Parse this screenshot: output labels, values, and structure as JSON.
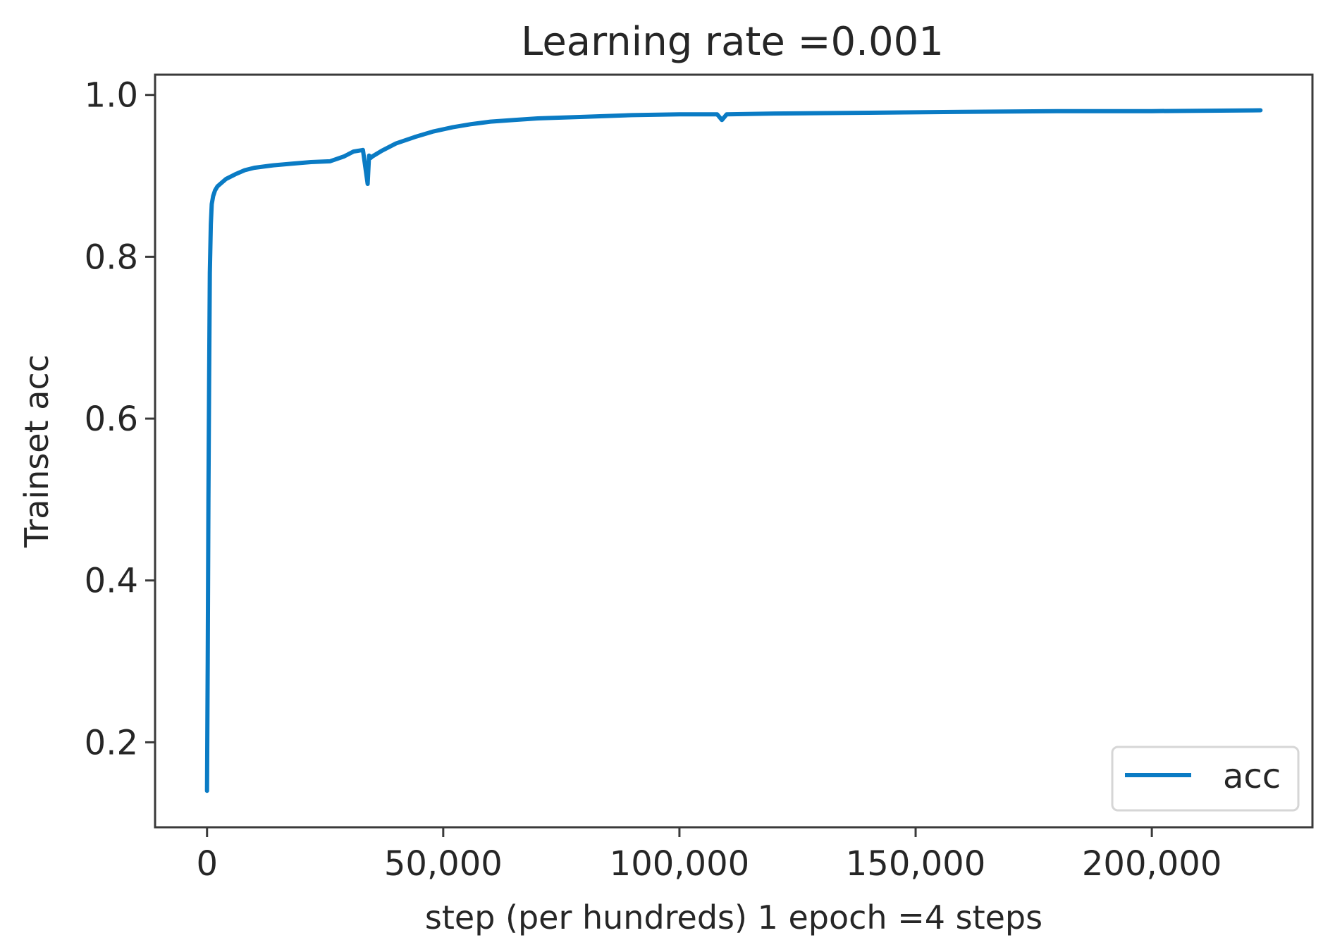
{
  "chart_data": {
    "type": "line",
    "title": "Learning rate =0.001",
    "xlabel": "step (per hundreds) 1 epoch =4 steps",
    "ylabel": "Trainset acc",
    "xlim": [
      -11000,
      234000
    ],
    "ylim": [
      0.095,
      1.025
    ],
    "xticks": [
      0,
      50000,
      100000,
      150000,
      200000
    ],
    "xtick_labels": [
      "0",
      "50,000",
      "100,000",
      "150,000",
      "200,000"
    ],
    "yticks": [
      0.2,
      0.4,
      0.6,
      0.8,
      1.0
    ],
    "ytick_labels": [
      "0.2",
      "0.4",
      "0.6",
      "0.8",
      "1.0"
    ],
    "grid": false,
    "legend_position": "bottom-right",
    "series": [
      {
        "name": "acc",
        "color": "#0a7bc4",
        "x": [
          0,
          150,
          300,
          450,
          600,
          800,
          1000,
          1300,
          1700,
          2200,
          3000,
          4000,
          6000,
          8000,
          10000,
          14000,
          18000,
          22000,
          26000,
          29000,
          31000,
          33000,
          34000,
          34300,
          34600,
          35000,
          37000,
          40000,
          44000,
          48000,
          52000,
          56000,
          60000,
          65000,
          70000,
          80000,
          90000,
          100000,
          108000,
          109000,
          110000,
          120000,
          140000,
          160000,
          180000,
          200000,
          223000
        ],
        "y": [
          0.14,
          0.3,
          0.5,
          0.65,
          0.78,
          0.84,
          0.865,
          0.875,
          0.882,
          0.887,
          0.891,
          0.896,
          0.902,
          0.907,
          0.91,
          0.913,
          0.915,
          0.917,
          0.918,
          0.924,
          0.93,
          0.932,
          0.89,
          0.925,
          0.922,
          0.924,
          0.931,
          0.94,
          0.948,
          0.955,
          0.96,
          0.964,
          0.967,
          0.969,
          0.971,
          0.973,
          0.975,
          0.976,
          0.976,
          0.969,
          0.976,
          0.977,
          0.978,
          0.979,
          0.98,
          0.98,
          0.981
        ]
      }
    ]
  }
}
